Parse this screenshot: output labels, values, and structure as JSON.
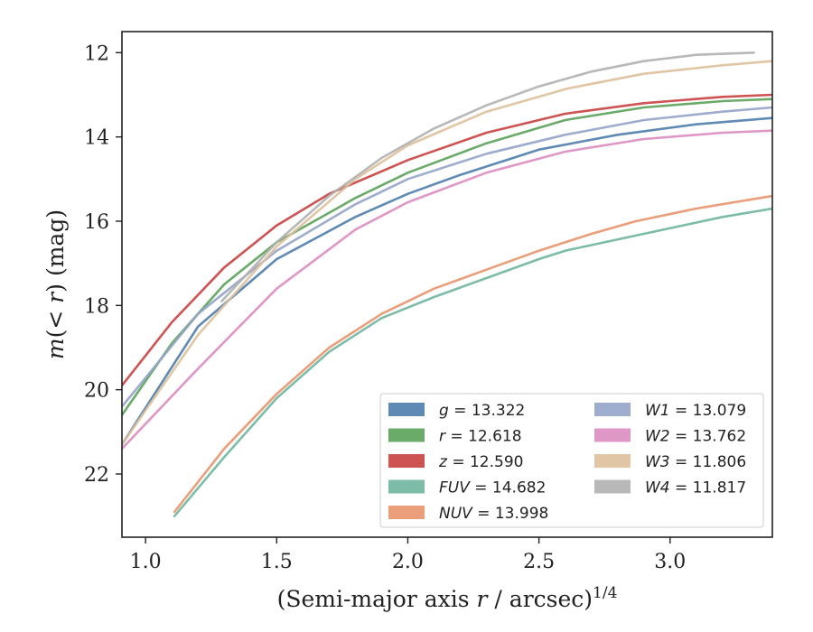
{
  "chart_data": {
    "type": "line",
    "xlabel": "(Semi-major axis r / arcsec)^1/4",
    "ylabel": "m(< r) (mag)",
    "xlim": [
      0.91,
      3.39
    ],
    "ylim": [
      23.5,
      11.5
    ],
    "y_inverted": true,
    "x_ticks": [
      {
        "value": 1.0,
        "label": "1.0"
      },
      {
        "value": 1.5,
        "label": "1.5"
      },
      {
        "value": 2.0,
        "label": "2.0"
      },
      {
        "value": 2.5,
        "label": "2.5"
      },
      {
        "value": 3.0,
        "label": "3.0"
      }
    ],
    "y_ticks": [
      {
        "value": 12,
        "label": "12"
      },
      {
        "value": 14,
        "label": "14"
      },
      {
        "value": 16,
        "label": "16"
      },
      {
        "value": 18,
        "label": "18"
      },
      {
        "value": 20,
        "label": "20"
      },
      {
        "value": 22,
        "label": "22"
      }
    ],
    "grid": false,
    "legend_placement": "lower-right",
    "series": [
      {
        "name": "g = 13.322",
        "legend_italic": "g",
        "legend_rest": " = 13.322",
        "color": "#4c7dac",
        "x": [
          0.91,
          1.2,
          1.5,
          1.8,
          2.0,
          2.2,
          2.5,
          2.8,
          3.1,
          3.39
        ],
        "y": [
          21.3,
          18.5,
          16.9,
          15.9,
          15.35,
          14.9,
          14.3,
          13.95,
          13.7,
          13.55
        ]
      },
      {
        "name": "r = 12.618",
        "legend_italic": "r",
        "legend_rest": " = 12.618",
        "color": "#5ba25a",
        "x": [
          0.91,
          1.1,
          1.3,
          1.5,
          1.8,
          2.0,
          2.3,
          2.6,
          2.9,
          3.2,
          3.39
        ],
        "y": [
          20.6,
          18.9,
          17.5,
          16.5,
          15.45,
          14.85,
          14.15,
          13.6,
          13.3,
          13.15,
          13.1
        ]
      },
      {
        "name": "z = 12.590",
        "legend_italic": "z",
        "legend_rest": " = 12.590",
        "color": "#c94040",
        "x": [
          0.91,
          1.1,
          1.3,
          1.5,
          1.7,
          2.0,
          2.3,
          2.6,
          2.9,
          3.2,
          3.39
        ],
        "y": [
          19.9,
          18.4,
          17.1,
          16.1,
          15.35,
          14.55,
          13.9,
          13.45,
          13.2,
          13.05,
          13.0
        ]
      },
      {
        "name": "FUV = 14.682",
        "legend_italic": "FUV",
        "legend_rest": " = 14.682",
        "color": "#6fb5a0",
        "x": [
          1.11,
          1.3,
          1.5,
          1.7,
          1.9,
          2.1,
          2.3,
          2.5,
          2.6,
          2.9,
          3.2,
          3.39
        ],
        "y": [
          23.0,
          21.6,
          20.2,
          19.1,
          18.3,
          17.8,
          17.35,
          16.9,
          16.7,
          16.3,
          15.9,
          15.7
        ]
      },
      {
        "name": "NUV = 13.998",
        "legend_italic": "NUV",
        "legend_rest": " = 13.998",
        "color": "#e8936b",
        "x": [
          1.11,
          1.3,
          1.5,
          1.7,
          1.9,
          2.1,
          2.3,
          2.5,
          2.7,
          2.87,
          3.1,
          3.39
        ],
        "y": [
          22.9,
          21.4,
          20.1,
          19.0,
          18.2,
          17.6,
          17.15,
          16.7,
          16.3,
          16.0,
          15.7,
          15.4
        ]
      },
      {
        "name": "W1 = 13.079",
        "legend_italic": "W1",
        "legend_rest": " = 13.079",
        "color": "#94a4c8",
        "x": [
          0.91,
          1.2,
          1.5,
          1.8,
          2.0,
          2.3,
          2.6,
          2.9,
          3.2,
          3.39
        ],
        "y": [
          20.4,
          18.2,
          16.7,
          15.6,
          15.0,
          14.4,
          13.95,
          13.6,
          13.4,
          13.3
        ]
      },
      {
        "name": "W2 = 13.762",
        "legend_italic": "W2",
        "legend_rest": " = 13.762",
        "color": "#dc8cc0",
        "x": [
          0.91,
          1.2,
          1.5,
          1.8,
          2.0,
          2.3,
          2.6,
          2.9,
          3.2,
          3.39
        ],
        "y": [
          21.4,
          19.5,
          17.6,
          16.2,
          15.55,
          14.85,
          14.35,
          14.05,
          13.9,
          13.85
        ]
      },
      {
        "name": "W3 = 11.806",
        "legend_italic": "W3",
        "legend_rest": " = 11.806",
        "color": "#ddc09a",
        "x": [
          0.91,
          1.2,
          1.5,
          1.8,
          2.0,
          2.3,
          2.61,
          2.9,
          3.2,
          3.39
        ],
        "y": [
          21.3,
          18.7,
          16.6,
          15.0,
          14.2,
          13.4,
          12.85,
          12.5,
          12.3,
          12.2
        ]
      },
      {
        "name": "W4 = 11.817",
        "legend_italic": "W4",
        "legend_rest": " = 11.817",
        "color": "#b0b0b0",
        "x": [
          1.29,
          1.5,
          1.7,
          1.9,
          2.1,
          2.3,
          2.5,
          2.7,
          2.9,
          3.1,
          3.32
        ],
        "y": [
          17.9,
          16.5,
          15.4,
          14.5,
          13.8,
          13.25,
          12.8,
          12.45,
          12.2,
          12.05,
          12.0
        ]
      }
    ]
  }
}
